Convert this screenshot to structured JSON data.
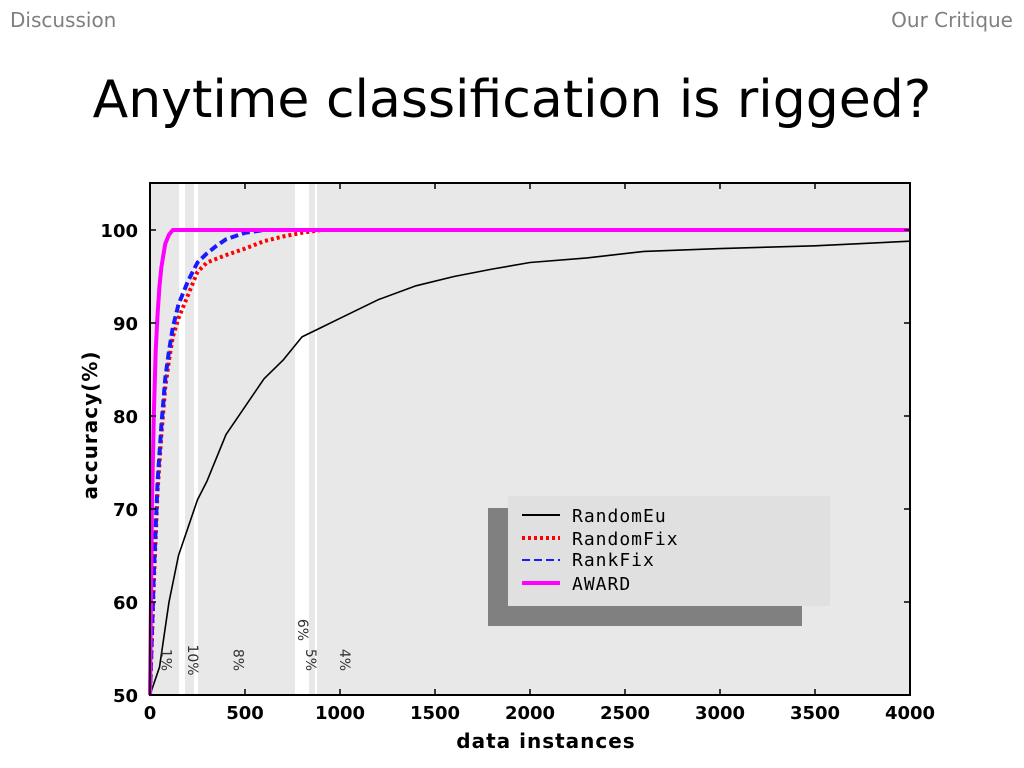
{
  "header": {
    "left": "Discussion",
    "right": "Our Critique"
  },
  "slide": {
    "title": "Anytime classification is rigged?"
  },
  "chart_data": {
    "type": "line",
    "title": "",
    "xlabel": "data instances",
    "ylabel": "accuracy(%)",
    "xlim": [
      0,
      4000
    ],
    "ylim": [
      50,
      105
    ],
    "xticks": [
      0,
      500,
      1000,
      1500,
      2000,
      2500,
      3000,
      3500,
      4000
    ],
    "yticks": [
      50,
      60,
      70,
      80,
      90,
      100
    ],
    "grid": false,
    "legend_position": "lower-right",
    "series": [
      {
        "name": "RandomEu",
        "color": "#000000",
        "style": "solid",
        "x": [
          0,
          50,
          100,
          150,
          200,
          250,
          300,
          400,
          500,
          600,
          700,
          800,
          900,
          1000,
          1200,
          1400,
          1600,
          1800,
          2000,
          2300,
          2600,
          3000,
          3500,
          4000
        ],
        "y": [
          50,
          53,
          60,
          65,
          68,
          71,
          73,
          78,
          81,
          84,
          86,
          88.5,
          89.5,
          90.5,
          92.5,
          94,
          95,
          95.8,
          96.5,
          97,
          97.7,
          98,
          98.3,
          98.8
        ]
      },
      {
        "name": "RandomFix",
        "color": "#ff0000",
        "style": "dotted",
        "x": [
          0,
          20,
          40,
          60,
          80,
          100,
          120,
          150,
          200,
          250,
          300,
          400,
          500,
          600,
          700,
          800,
          900,
          1000,
          1500,
          2000,
          4000
        ],
        "y": [
          50,
          62,
          72,
          78,
          83,
          86,
          88.5,
          90.5,
          93,
          95.5,
          96.5,
          97.3,
          98,
          98.8,
          99.3,
          99.7,
          100,
          100,
          100,
          100,
          100
        ]
      },
      {
        "name": "RankFix",
        "color": "#1a1aff",
        "style": "dashed",
        "x": [
          0,
          20,
          40,
          60,
          80,
          100,
          120,
          150,
          200,
          250,
          300,
          350,
          400,
          500,
          600,
          700,
          1000,
          4000
        ],
        "y": [
          50,
          63,
          73,
          79,
          84,
          87,
          89.5,
          92,
          94.5,
          96.5,
          97.5,
          98.3,
          99,
          99.7,
          100,
          100,
          100,
          100
        ]
      },
      {
        "name": "AWARD",
        "color": "#ff00ff",
        "style": "solid",
        "x": [
          0,
          10,
          20,
          30,
          40,
          50,
          60,
          80,
          100,
          120,
          150,
          200,
          4000
        ],
        "y": [
          50,
          70,
          80,
          87,
          91,
          94,
          96,
          98.5,
          99.5,
          100,
          100,
          100,
          100
        ]
      }
    ],
    "annotations": [
      "1%",
      "10%",
      "8%",
      "6%",
      "5%",
      "4%"
    ],
    "annotation_x": [
      60,
      200,
      440,
      780,
      820,
      1000
    ]
  }
}
